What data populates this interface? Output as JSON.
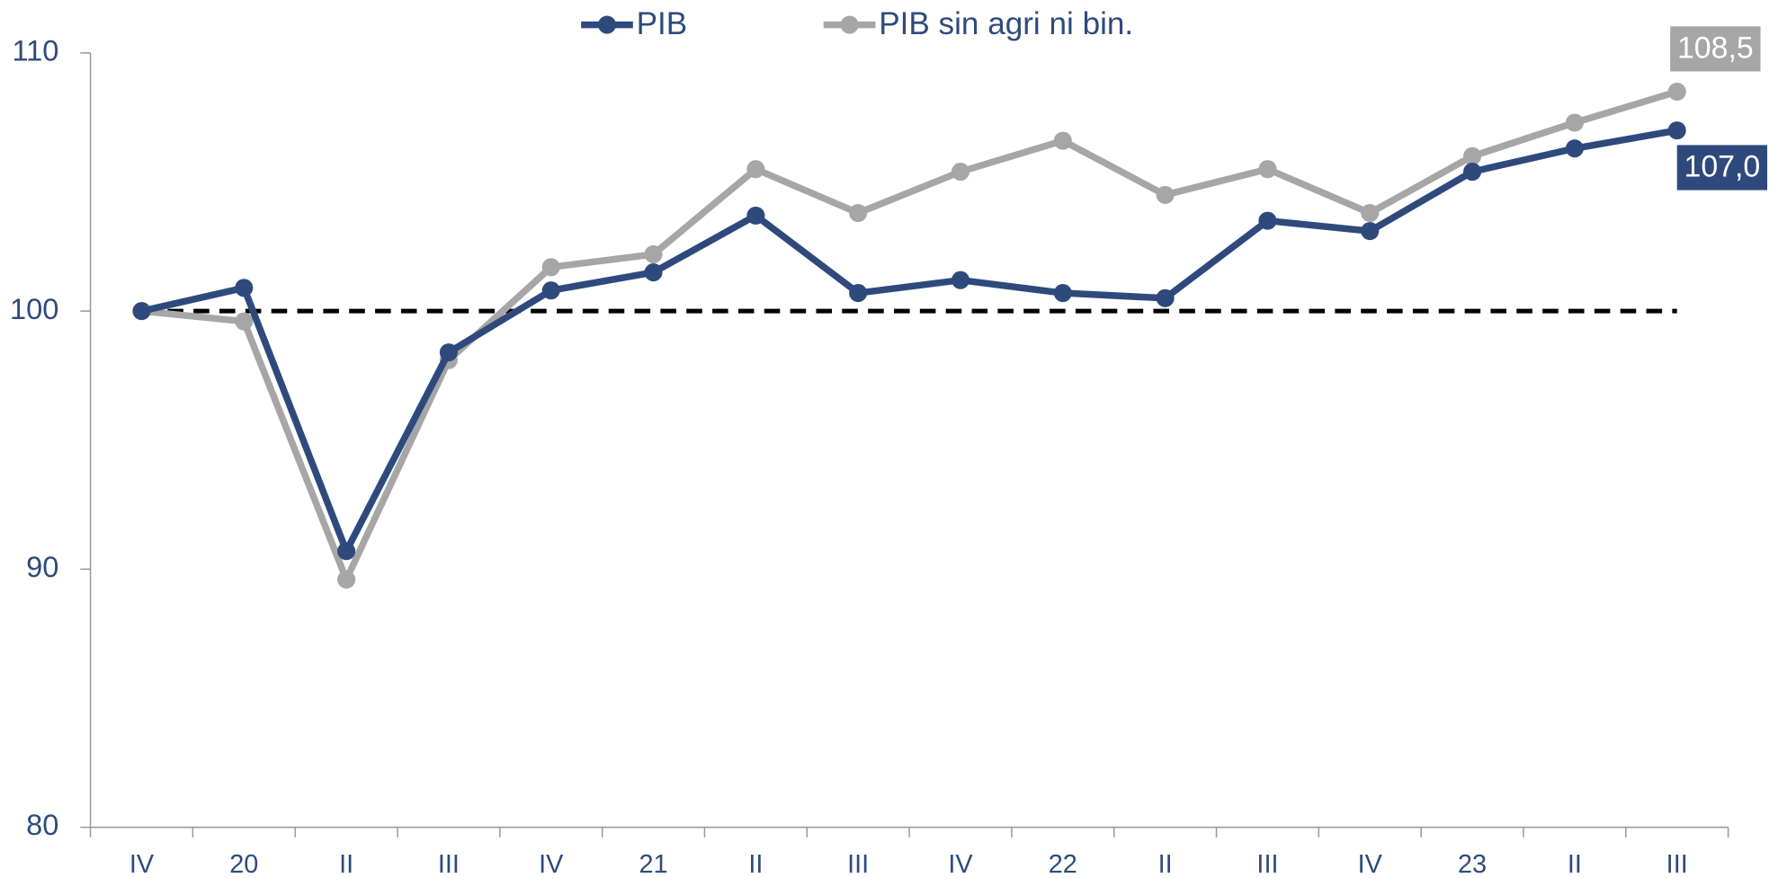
{
  "chart_data": {
    "type": "line",
    "categories": [
      "IV",
      "20",
      "II",
      "III",
      "IV",
      "21",
      "II",
      "III",
      "IV",
      "22",
      "II",
      "III",
      "IV",
      "23",
      "II",
      "III"
    ],
    "series": [
      {
        "name": "PIB",
        "color": "#2e4a7d",
        "values": [
          100,
          100.9,
          90.7,
          98.4,
          100.8,
          101.5,
          103.7,
          100.7,
          101.2,
          100.7,
          100.5,
          103.5,
          103.1,
          105.4,
          106.3,
          107.0
        ],
        "value_labels": [
          null,
          null,
          null,
          null,
          null,
          null,
          null,
          null,
          null,
          null,
          null,
          null,
          null,
          null,
          null,
          "107,0"
        ]
      },
      {
        "name": "PIB sin agri ni bin.",
        "color": "#a6a6a6",
        "values": [
          100,
          99.6,
          89.6,
          98.1,
          101.7,
          102.2,
          105.5,
          103.8,
          105.4,
          106.6,
          104.5,
          105.5,
          103.8,
          106.0,
          107.3,
          108.5
        ],
        "value_labels": [
          null,
          null,
          null,
          null,
          null,
          null,
          null,
          null,
          null,
          null,
          null,
          null,
          null,
          null,
          null,
          "108,5"
        ]
      }
    ],
    "reference_line": 100,
    "ylim": [
      80,
      110
    ],
    "yticks": [
      80,
      90,
      100,
      110
    ]
  }
}
